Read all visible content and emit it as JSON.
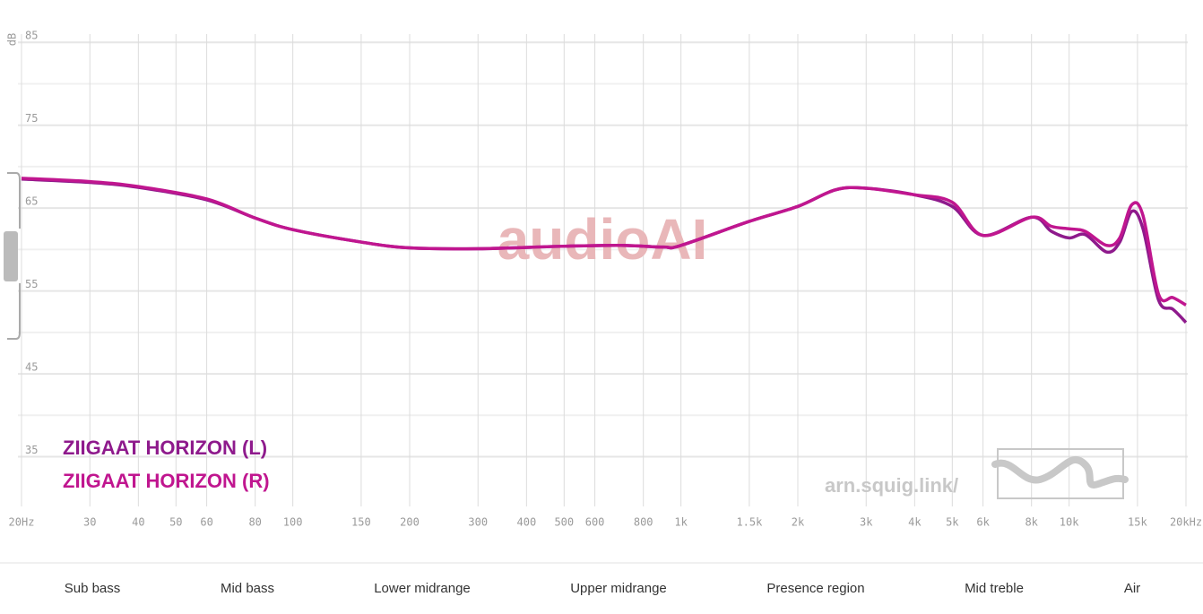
{
  "chart_data": {
    "type": "line",
    "y_label": "dB",
    "xscale": "log",
    "xlim": [
      20,
      20000
    ],
    "ylim": [
      29,
      86
    ],
    "xticks": [
      {
        "value": 20,
        "label": "20Hz"
      },
      30,
      40,
      50,
      60,
      80,
      100,
      150,
      200,
      300,
      400,
      500,
      600,
      800,
      {
        "value": 1000,
        "label": "1k"
      },
      {
        "value": 1500,
        "label": "1.5k"
      },
      {
        "value": 2000,
        "label": "2k"
      },
      {
        "value": 3000,
        "label": "3k"
      },
      {
        "value": 4000,
        "label": "4k"
      },
      {
        "value": 5000,
        "label": "5k"
      },
      {
        "value": 6000,
        "label": "6k"
      },
      {
        "value": 8000,
        "label": "8k"
      },
      {
        "value": 10000,
        "label": "10k"
      },
      {
        "value": 15000,
        "label": "15k"
      },
      {
        "value": 20000,
        "label": "20kHz"
      }
    ],
    "yticks": [
      35,
      45,
      55,
      65,
      75,
      85
    ],
    "grid": true,
    "x": [
      20,
      30,
      40,
      60,
      80,
      100,
      150,
      200,
      300,
      500,
      700,
      900,
      1000,
      1500,
      2000,
      2500,
      3000,
      4000,
      5000,
      6000,
      8000,
      9000,
      10000,
      11000,
      12500,
      13500,
      14500,
      15500,
      17000,
      18500,
      20000
    ],
    "series": [
      {
        "name": "ZIIGAAT HORIZON (L)",
        "color": "#8e1a8c",
        "values": [
          68.5,
          68.1,
          67.5,
          66.0,
          63.8,
          62.4,
          60.9,
          60.2,
          60.1,
          60.4,
          60.5,
          60.3,
          60.5,
          63.4,
          65.2,
          67.2,
          67.4,
          66.6,
          65.2,
          61.7,
          63.9,
          62.2,
          61.4,
          61.8,
          59.7,
          60.9,
          64.6,
          62.5,
          53.9,
          52.8,
          51.2
        ]
      },
      {
        "name": "ZIIGAAT HORIZON (R)",
        "color": "#c0168f",
        "values": [
          68.6,
          68.2,
          67.6,
          66.1,
          63.8,
          62.4,
          60.9,
          60.2,
          60.1,
          60.4,
          60.5,
          60.3,
          60.5,
          63.4,
          65.2,
          67.2,
          67.4,
          66.6,
          65.7,
          61.7,
          63.9,
          62.8,
          62.5,
          62.2,
          60.5,
          61.4,
          65.4,
          64.1,
          54.6,
          54.2,
          53.3
        ]
      }
    ],
    "watermark": "audioAI",
    "site": "arn.squig.link/"
  },
  "bands": [
    "Sub bass",
    "Mid bass",
    "Lower midrange",
    "Upper midrange",
    "Presence region",
    "Mid treble",
    "Air"
  ]
}
